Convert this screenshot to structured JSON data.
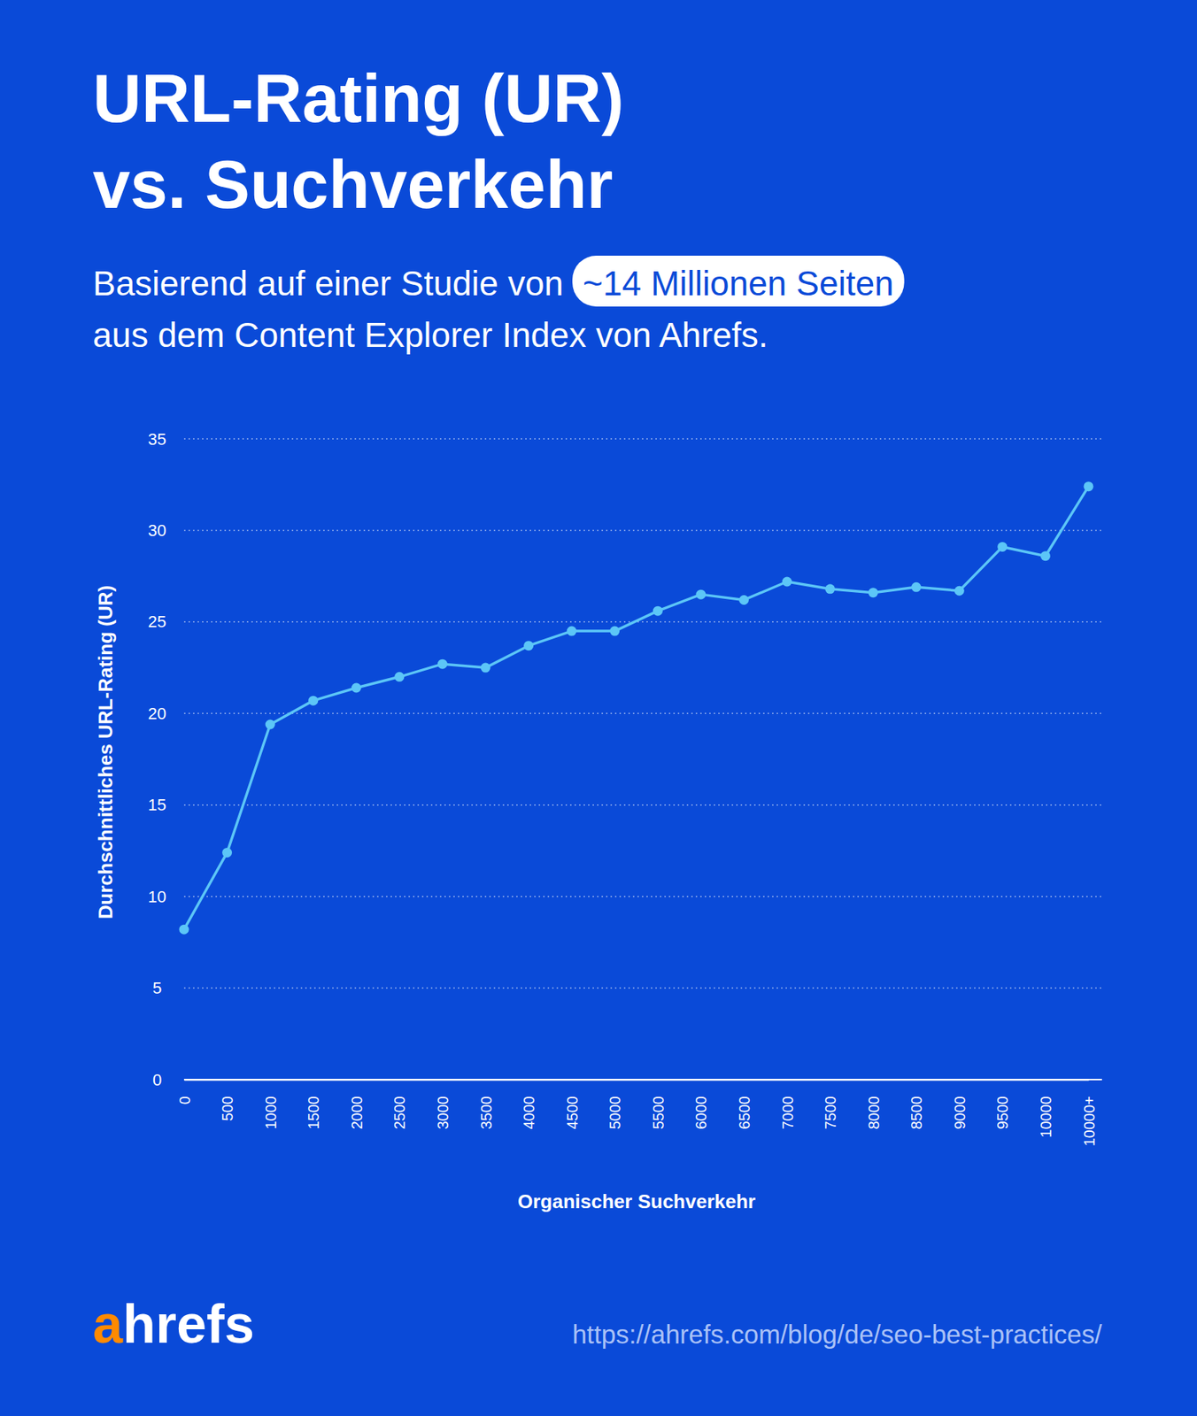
{
  "chart_data": {
    "type": "line",
    "title": [
      "URL-Rating (UR)",
      "vs. Suchverkehr"
    ],
    "subtitle": [
      "Basierend auf einer Studie von",
      "~14 Millionen Seiten",
      "aus dem Content Explorer Index von Ahrefs."
    ],
    "x_label": "Organischer Suchverkehr",
    "y_label": "Durchschnittliches URL-Rating (UR)",
    "categories": [
      "0",
      "500",
      "1000",
      "1500",
      "2000",
      "2500",
      "3000",
      "3500",
      "4000",
      "4500",
      "5000",
      "5500",
      "6000",
      "6500",
      "7000",
      "7500",
      "8000",
      "8500",
      "9000",
      "9500",
      "10000",
      "10000+"
    ],
    "values": [
      8.2,
      12.4,
      19.4,
      20.7,
      21.4,
      22.0,
      22.7,
      22.5,
      23.7,
      24.5,
      24.5,
      25.6,
      26.5,
      26.2,
      27.2,
      26.8,
      26.6,
      26.9,
      26.7,
      29.1,
      28.6,
      32.4
    ],
    "color": "#5cc6f7",
    "marker": "circle",
    "ylim": [
      0,
      35
    ],
    "yticks": [
      0,
      5,
      10,
      15,
      20,
      25,
      30,
      35
    ],
    "grid": true
  },
  "logo": "ahrefs",
  "source": "https://ahrefs.com/blog/de/seo-best-practices/"
}
